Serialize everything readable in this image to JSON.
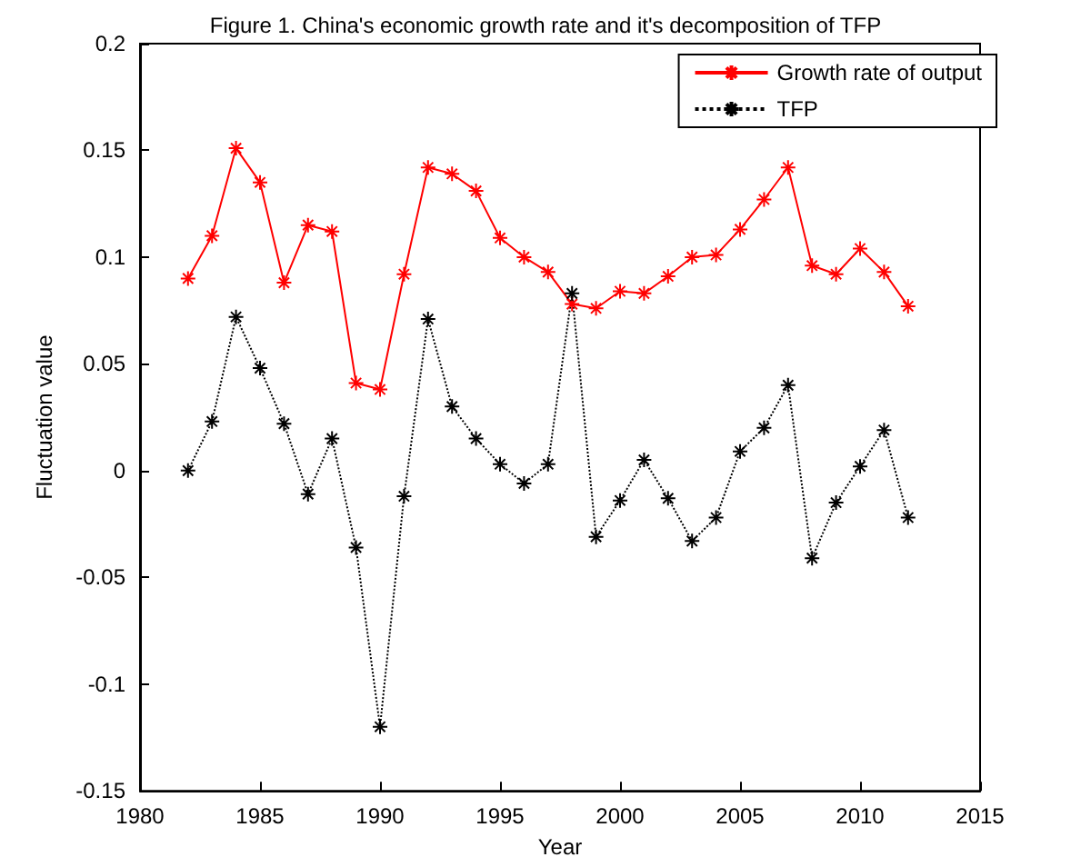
{
  "chart_data": {
    "type": "line",
    "title": "Figure 1. China's economic growth rate and it's decomposition of TFP",
    "xlabel": "Year",
    "ylabel": "Fluctuation value",
    "x": [
      1982,
      1983,
      1984,
      1985,
      1986,
      1987,
      1988,
      1989,
      1990,
      1991,
      1992,
      1993,
      1994,
      1995,
      1996,
      1997,
      1998,
      1999,
      2000,
      2001,
      2002,
      2003,
      2004,
      2005,
      2006,
      2007,
      2008,
      2009,
      2010,
      2011,
      2012
    ],
    "series": [
      {
        "name": "Growth rate of output",
        "color": "#ff0000",
        "line_style": "solid",
        "values": [
          0.09,
          0.11,
          0.151,
          0.135,
          0.088,
          0.115,
          0.112,
          0.041,
          0.038,
          0.092,
          0.142,
          0.139,
          0.131,
          0.109,
          0.1,
          0.093,
          0.078,
          0.076,
          0.084,
          0.083,
          0.091,
          0.1,
          0.101,
          0.113,
          0.127,
          0.142,
          0.096,
          0.092,
          0.104,
          0.093,
          0.077
        ]
      },
      {
        "name": "TFP",
        "color": "#000000",
        "line_style": "dotted",
        "values": [
          0,
          0.023,
          0.072,
          0.048,
          0.022,
          -0.011,
          0.015,
          -0.036,
          -0.12,
          -0.012,
          0.071,
          0.03,
          0.015,
          0.003,
          -0.006,
          0.003,
          0.083,
          -0.031,
          -0.014,
          0.005,
          -0.013,
          -0.033,
          -0.022,
          0.009,
          0.02,
          0.04,
          -0.041,
          -0.015,
          0.002,
          0.019,
          -0.022
        ]
      }
    ],
    "xlim": [
      1980,
      2015
    ],
    "xticks": [
      1980,
      1985,
      1990,
      1995,
      2000,
      2005,
      2010,
      2015
    ],
    "ylim": [
      -0.15,
      0.2
    ],
    "yticks": [
      -0.15,
      -0.1,
      -0.05,
      0,
      0.05,
      0.1,
      0.15,
      0.2
    ],
    "grid": false,
    "legend": "top right",
    "marker": "cross"
  }
}
